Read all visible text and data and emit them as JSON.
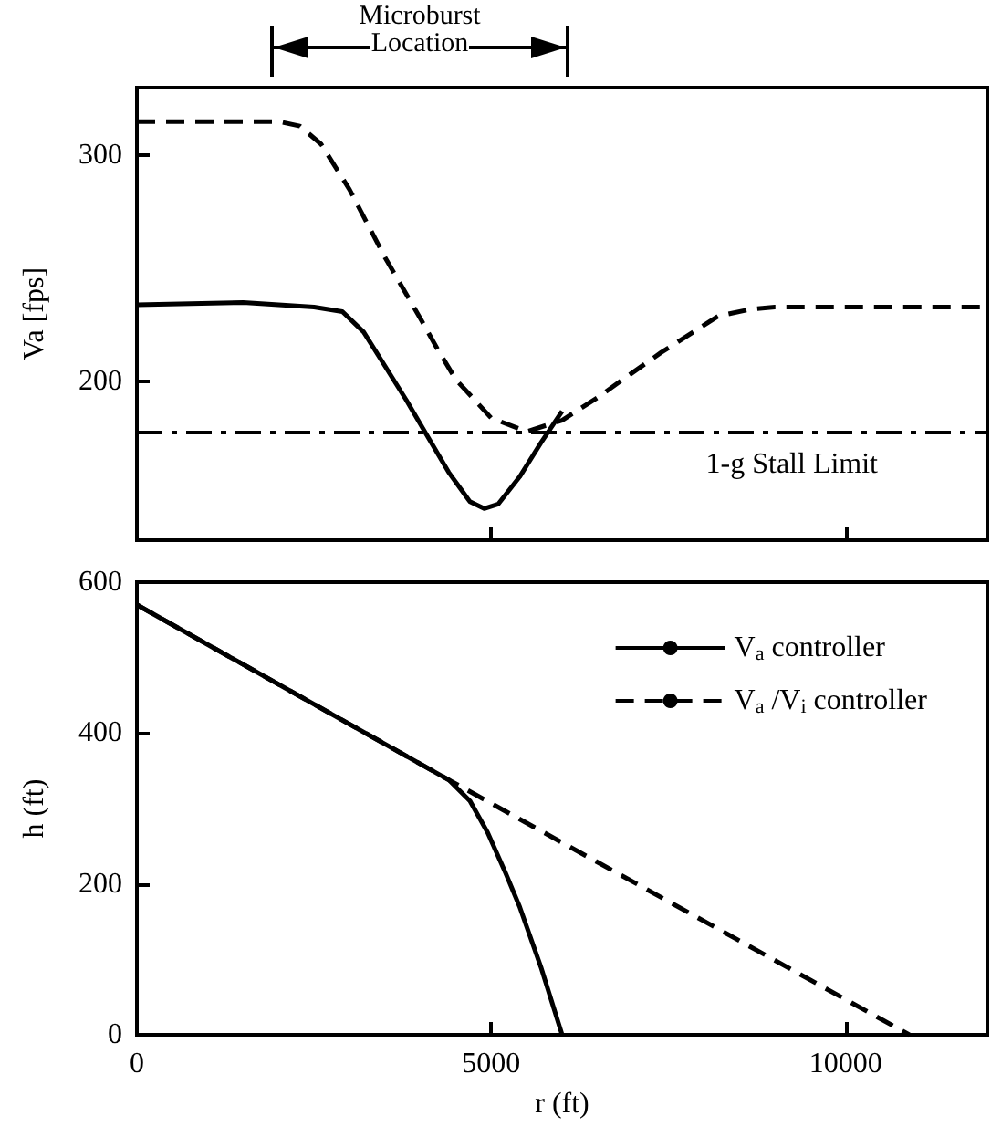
{
  "chart_data": [
    {
      "type": "line",
      "ylabel": "Va [fps]",
      "annotations": [
        "Microburst Location"
      ],
      "xlim": [
        0,
        12000
      ],
      "xticks": [
        {
          "value": 5000,
          "label": null
        },
        {
          "value": 10000,
          "label": null
        }
      ],
      "ylim": [
        130,
        330
      ],
      "yticks": [
        200,
        300
      ],
      "tick_labels": "y",
      "marker": "none",
      "grid": false,
      "legend": false,
      "series": [
        {
          "color": "#000000",
          "line_style": "solid",
          "x": [
            0,
            1500,
            2500,
            2900,
            3200,
            3500,
            3800,
            4100,
            4400,
            4700,
            4900,
            5100,
            5400,
            5700,
            6000
          ],
          "values": [
            234,
            235,
            233,
            231,
            222,
            207,
            192,
            176,
            160,
            147,
            144,
            146,
            158,
            173,
            187
          ]
        },
        {
          "color": "#000000",
          "line_style": "dashed",
          "x": [
            0,
            2000,
            2300,
            2600,
            3000,
            3500,
            4000,
            4250,
            4500,
            5000,
            5500,
            6000,
            6500,
            6900,
            7400,
            7800,
            8200,
            8650,
            9000,
            12000
          ],
          "values": [
            315,
            315,
            313,
            305,
            285,
            255,
            228,
            214,
            201,
            184,
            178,
            183,
            193,
            202,
            213,
            221,
            229,
            232,
            233,
            233
          ]
        }
      ],
      "ref_lines": [
        {
          "axis": "y",
          "value": 178,
          "label": "1-g Stall Limit",
          "color": "#000000",
          "line_style": "dashed"
        }
      ]
    },
    {
      "type": "line",
      "xlabel": "r (ft)",
      "ylabel": "h (ft)",
      "xlim": [
        0,
        12000
      ],
      "xticks": [
        0,
        5000,
        10000
      ],
      "ylim": [
        0,
        600
      ],
      "yticks": [
        0,
        200,
        400,
        600
      ],
      "marker": "none",
      "grid": false,
      "legend": "top right",
      "series": [
        {
          "name": "V$_{a}$ controller",
          "color": "#000000",
          "line_style": "solid",
          "x": [
            0,
            4400,
            4700,
            4950,
            5200,
            5400,
            5700,
            6000
          ],
          "values": [
            570,
            338,
            310,
            268,
            215,
            170,
            90,
            0
          ]
        },
        {
          "name": "V$_{a}$ /V$_{i}$ controller",
          "color": "#000000",
          "line_style": "dashed",
          "x": [
            0,
            4400,
            10900
          ],
          "values": [
            570,
            338,
            0
          ]
        }
      ]
    }
  ]
}
